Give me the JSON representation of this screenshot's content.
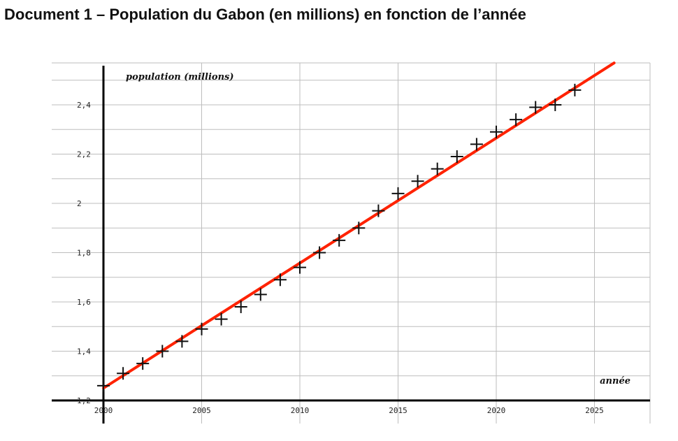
{
  "page": {
    "title": "Document 1 – Population du Gabon (en millions) en fonction de l’année"
  },
  "chart_data": {
    "type": "scatter",
    "xlabel": "année",
    "ylabel": "population (millions)",
    "xlim": [
      2000,
      2028
    ],
    "ylim": [
      1.17,
      2.57
    ],
    "x_ticks": [
      2000,
      2005,
      2010,
      2015,
      2020,
      2025
    ],
    "x_tick_labels": [
      "2000",
      "2005",
      "2010",
      "2015",
      "2020",
      "2025"
    ],
    "y_ticks": [
      1.2,
      1.4,
      1.6,
      1.8,
      2.0,
      2.2,
      2.4
    ],
    "y_tick_labels": [
      "1,2",
      "1,4",
      "1,6",
      "1,8",
      "2",
      "2,2",
      "2,4"
    ],
    "grid": true,
    "marker": "plus",
    "points": [
      {
        "x": 2000,
        "y": 1.26
      },
      {
        "x": 2001,
        "y": 1.31
      },
      {
        "x": 2002,
        "y": 1.35
      },
      {
        "x": 2003,
        "y": 1.4
      },
      {
        "x": 2004,
        "y": 1.44
      },
      {
        "x": 2005,
        "y": 1.49
      },
      {
        "x": 2006,
        "y": 1.53
      },
      {
        "x": 2007,
        "y": 1.58
      },
      {
        "x": 2008,
        "y": 1.63
      },
      {
        "x": 2009,
        "y": 1.69
      },
      {
        "x": 2010,
        "y": 1.74
      },
      {
        "x": 2011,
        "y": 1.8
      },
      {
        "x": 2012,
        "y": 1.85
      },
      {
        "x": 2013,
        "y": 1.9
      },
      {
        "x": 2014,
        "y": 1.97
      },
      {
        "x": 2015,
        "y": 2.04
      },
      {
        "x": 2016,
        "y": 2.09
      },
      {
        "x": 2017,
        "y": 2.14
      },
      {
        "x": 2018,
        "y": 2.19
      },
      {
        "x": 2019,
        "y": 2.24
      },
      {
        "x": 2020,
        "y": 2.29
      },
      {
        "x": 2021,
        "y": 2.34
      },
      {
        "x": 2022,
        "y": 2.39
      },
      {
        "x": 2023,
        "y": 2.4
      },
      {
        "x": 2024,
        "y": 2.46
      }
    ],
    "trend_line": {
      "color": "#ff2200",
      "start": {
        "x": 2000,
        "y": 1.25
      },
      "end": {
        "x": 2026,
        "y": 2.57
      }
    },
    "colors": {
      "marker": "#111111",
      "grid": "#bdbdbd",
      "axis": "#000000"
    }
  }
}
